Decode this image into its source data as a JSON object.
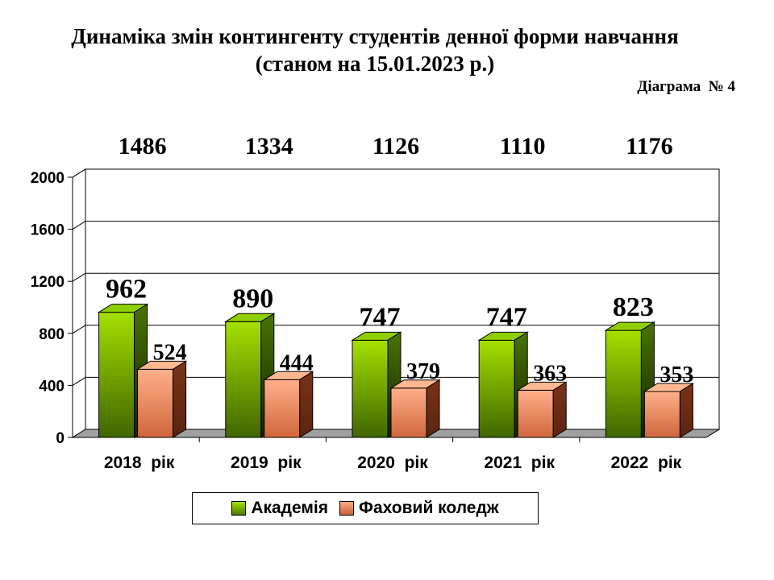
{
  "title_line1": "Динаміка змін контингенту студентів денної форми навчання",
  "title_line2": "(станом на 15.01.2023 р.)",
  "diagram_label": "Діаграма  № 4",
  "colors": {
    "green_light": "#a4e000",
    "green_dark": "#3f6600",
    "orange_light": "#ffb08a",
    "orange_dark": "#5a2410",
    "floor": "#a0a0a0"
  },
  "chart_data": {
    "type": "bar",
    "title": "Динаміка змін контингенту студентів денної форми навчання",
    "subtitle": "(станом на 15.01.2023 р.)",
    "categories": [
      "2018  рік",
      "2019  рік",
      "2020  рік",
      "2021  рік",
      "2022  рік"
    ],
    "totals": [
      "1486",
      "1334",
      "1126",
      "1110",
      "1176"
    ],
    "series": [
      {
        "name": "Академія",
        "values": [
          962,
          890,
          747,
          747,
          823
        ]
      },
      {
        "name": "Фаховий коледж",
        "values": [
          524,
          444,
          379,
          363,
          353
        ]
      }
    ],
    "ylim": [
      0,
      2000
    ],
    "yticks": [
      0,
      400,
      800,
      1200,
      1600,
      2000
    ],
    "grid": true,
    "legend": "bottom",
    "style": "3d-clustered-column"
  }
}
